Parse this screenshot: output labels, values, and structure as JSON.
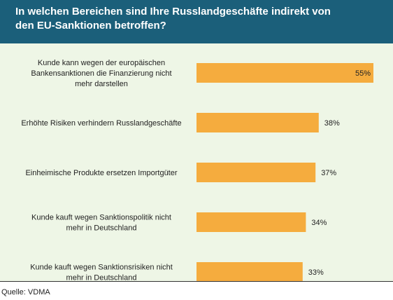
{
  "header": {
    "title_line1": "In welchen Bereichen sind Ihre Russlandgeschäfte indirekt von",
    "title_line2": "den EU-Sanktionen betroffen?"
  },
  "source": "Quelle: VDMA",
  "colors": {
    "header_bg": "#1b5f7a",
    "plot_bg": "#eef6e6",
    "bar": "#f5ac3e"
  },
  "chart_data": {
    "type": "bar",
    "orientation": "horizontal",
    "title": "In welchen Bereichen sind Ihre Russlandgeschäfte indirekt von den EU-Sanktionen betroffen?",
    "unit": "%",
    "categories": [
      [
        "Kunde kann wegen der europäischen",
        "Bankensanktionen die Finanzierung nicht",
        "mehr darstellen"
      ],
      [
        "Erhöhte Risiken verhindern Russlandgeschäfte"
      ],
      [
        "Einheimische Produkte ersetzen Importgüter"
      ],
      [
        "Kunde kauft wegen Sanktionspolitik nicht",
        "mehr in Deutschland"
      ],
      [
        "Kunde kauft wegen Sanktionsrisiken nicht",
        "mehr in Deutschland"
      ]
    ],
    "values": [
      55,
      38,
      37,
      34,
      33
    ],
    "value_labels": [
      "55%",
      "38%",
      "37%",
      "34%",
      "33%"
    ],
    "legend": "none",
    "grid": false
  }
}
